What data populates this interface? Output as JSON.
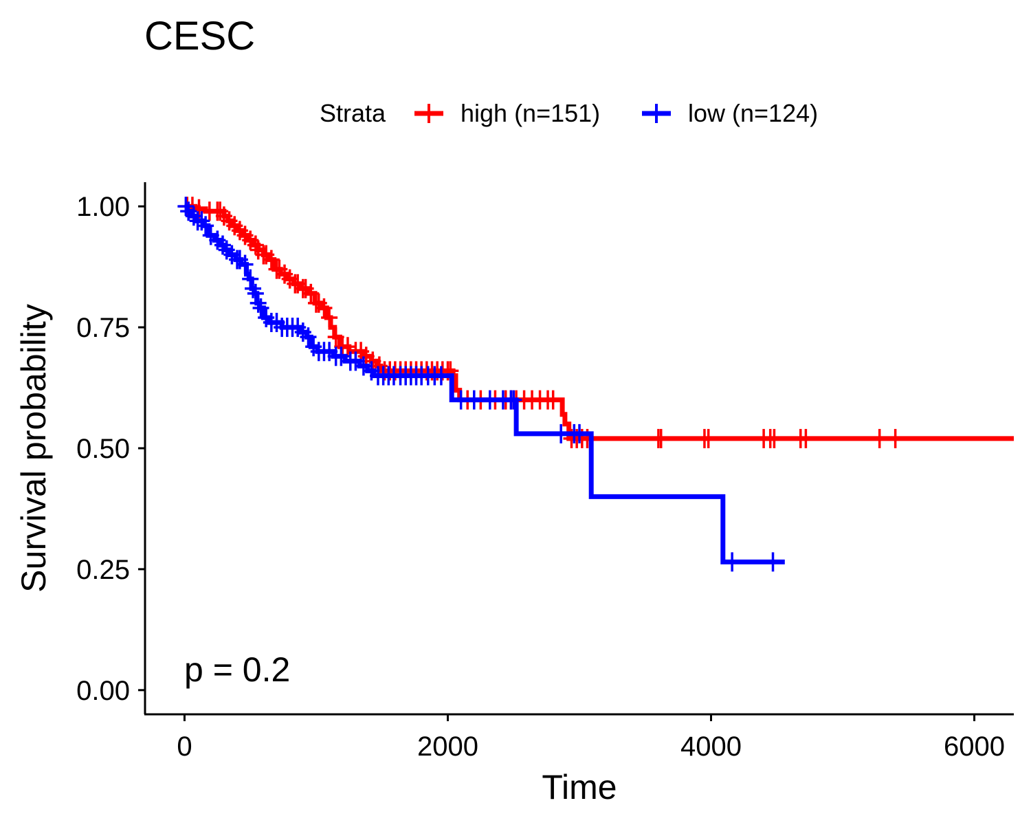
{
  "chart_data": {
    "type": "line",
    "title": "CESC",
    "xlabel": "Time",
    "ylabel": "Survival probability",
    "xlim": [
      -300,
      6300
    ],
    "ylim": [
      -0.05,
      1.05
    ],
    "x_ticks": [
      0,
      2000,
      4000,
      6000
    ],
    "x_tick_labels": [
      "0",
      "2000",
      "4000",
      "6000"
    ],
    "y_ticks": [
      0,
      0.25,
      0.5,
      0.75,
      1.0
    ],
    "y_tick_labels": [
      "0.00",
      "0.25",
      "0.50",
      "0.75",
      "1.00"
    ],
    "grid": false,
    "legend": {
      "title": "Strata",
      "position": "top"
    },
    "annotation": "p = 0.2",
    "series": [
      {
        "name": "high (n=151)",
        "color": "#ff0000",
        "steps": [
          [
            0,
            1.0
          ],
          [
            80,
            0.995
          ],
          [
            160,
            0.99
          ],
          [
            300,
            0.98
          ],
          [
            330,
            0.97
          ],
          [
            360,
            0.96
          ],
          [
            400,
            0.95
          ],
          [
            440,
            0.94
          ],
          [
            480,
            0.93
          ],
          [
            520,
            0.92
          ],
          [
            560,
            0.91
          ],
          [
            600,
            0.9
          ],
          [
            640,
            0.89
          ],
          [
            680,
            0.87
          ],
          [
            730,
            0.86
          ],
          [
            780,
            0.85
          ],
          [
            830,
            0.84
          ],
          [
            880,
            0.83
          ],
          [
            940,
            0.82
          ],
          [
            990,
            0.8
          ],
          [
            1040,
            0.79
          ],
          [
            1080,
            0.77
          ],
          [
            1110,
            0.75
          ],
          [
            1140,
            0.73
          ],
          [
            1180,
            0.71
          ],
          [
            1250,
            0.7
          ],
          [
            1360,
            0.69
          ],
          [
            1420,
            0.68
          ],
          [
            1460,
            0.67
          ],
          [
            1490,
            0.66
          ],
          [
            2040,
            0.65
          ],
          [
            2060,
            0.62
          ],
          [
            2090,
            0.6
          ],
          [
            2870,
            0.57
          ],
          [
            2890,
            0.55
          ],
          [
            2920,
            0.52
          ],
          [
            6300,
            0.52
          ]
        ],
        "censor_times": [
          20,
          60,
          110,
          190,
          250,
          270,
          300,
          340,
          380,
          420,
          460,
          500,
          540,
          560,
          600,
          620,
          660,
          700,
          720,
          760,
          800,
          840,
          860,
          900,
          920,
          960,
          1000,
          1020,
          1060,
          1100,
          1150,
          1200,
          1240,
          1300,
          1340,
          1380,
          1430,
          1480,
          1520,
          1560,
          1600,
          1640,
          1680,
          1720,
          1760,
          1800,
          1840,
          1880,
          1920,
          1960,
          2000,
          2020,
          2150,
          2250,
          2360,
          2440,
          2480,
          2520,
          2580,
          2640,
          2700,
          2760,
          2800,
          2940,
          2980,
          3020,
          3060,
          3600,
          3620,
          3950,
          3980,
          4400,
          4450,
          4480,
          4680,
          4720,
          5280,
          5400
        ]
      },
      {
        "name": "low (n=124)",
        "color": "#0000ff",
        "steps": [
          [
            0,
            1.0
          ],
          [
            20,
            0.99
          ],
          [
            50,
            0.98
          ],
          [
            90,
            0.97
          ],
          [
            140,
            0.96
          ],
          [
            180,
            0.94
          ],
          [
            230,
            0.93
          ],
          [
            270,
            0.92
          ],
          [
            300,
            0.91
          ],
          [
            340,
            0.9
          ],
          [
            390,
            0.89
          ],
          [
            430,
            0.88
          ],
          [
            470,
            0.86
          ],
          [
            490,
            0.85
          ],
          [
            510,
            0.83
          ],
          [
            530,
            0.82
          ],
          [
            550,
            0.8
          ],
          [
            570,
            0.79
          ],
          [
            600,
            0.77
          ],
          [
            640,
            0.76
          ],
          [
            740,
            0.75
          ],
          [
            880,
            0.74
          ],
          [
            930,
            0.73
          ],
          [
            960,
            0.71
          ],
          [
            1010,
            0.7
          ],
          [
            1130,
            0.69
          ],
          [
            1220,
            0.68
          ],
          [
            1330,
            0.67
          ],
          [
            1390,
            0.66
          ],
          [
            1440,
            0.65
          ],
          [
            2030,
            0.6
          ],
          [
            2520,
            0.53
          ],
          [
            3090,
            0.4
          ],
          [
            4090,
            0.265
          ],
          [
            4560,
            0.265
          ]
        ],
        "censor_times": [
          10,
          30,
          70,
          100,
          130,
          160,
          200,
          250,
          290,
          320,
          360,
          400,
          420,
          460,
          500,
          520,
          540,
          560,
          580,
          620,
          660,
          700,
          740,
          780,
          820,
          860,
          900,
          940,
          980,
          1020,
          1060,
          1100,
          1150,
          1190,
          1260,
          1300,
          1360,
          1420,
          1470,
          1510,
          1550,
          1590,
          1640,
          1680,
          1720,
          1760,
          1800,
          1850,
          1900,
          1950,
          2100,
          2200,
          2320,
          2420,
          2480,
          2500,
          2860,
          2960,
          3000,
          4160,
          4470
        ]
      }
    ]
  }
}
